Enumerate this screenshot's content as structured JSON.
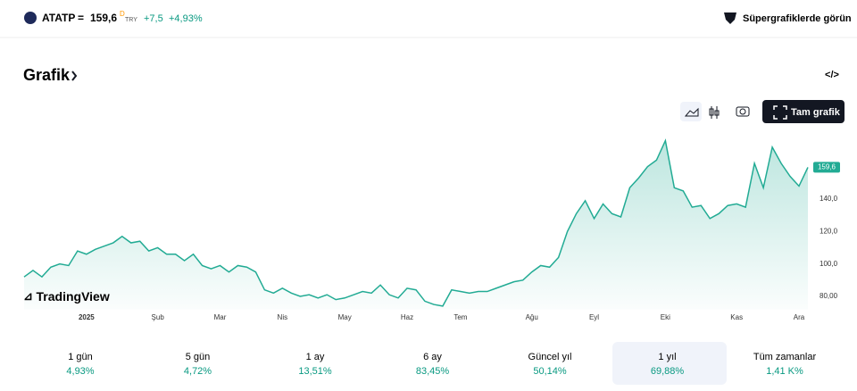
{
  "header": {
    "symbol": "ATATP",
    "equals": "=",
    "price": "159,6",
    "flag": "D",
    "currency": "TRY",
    "change": "+7,5",
    "change_pct": "+4,93%",
    "super_link": "Süpergrafiklerde görün"
  },
  "section": {
    "title": "Grafik",
    "full_chart": "Tam grafik",
    "brand": "TradingView"
  },
  "chart_data": {
    "type": "line",
    "color": "#22ab94",
    "categories": [
      null,
      null,
      null,
      null,
      null,
      null,
      null,
      "2025",
      null,
      null,
      null,
      null,
      null,
      null,
      null,
      "Şub",
      null,
      null,
      null,
      null,
      null,
      null,
      "Mar",
      null,
      null,
      null,
      null,
      null,
      null,
      "Nis",
      null,
      null,
      null,
      null,
      null,
      null,
      "May",
      null,
      null,
      null,
      null,
      null,
      null,
      "Haz",
      null,
      null,
      null,
      null,
      null,
      "Tem",
      null,
      null,
      null,
      null,
      null,
      null,
      null,
      "Ağu",
      null,
      null,
      null,
      null,
      null,
      null,
      "Eyl",
      null,
      null,
      null,
      null,
      null,
      null,
      null,
      "Eki",
      null,
      null,
      null,
      null,
      null,
      null,
      null,
      "Kas",
      null,
      null,
      null,
      null,
      null,
      null,
      "Ara",
      null
    ],
    "values": [
      92,
      96,
      92,
      98,
      100,
      99,
      108,
      106,
      109,
      111,
      113,
      117,
      113,
      114,
      108,
      110,
      106,
      106,
      102,
      106,
      99,
      97,
      99,
      95,
      99,
      98,
      95,
      84,
      82,
      85,
      82,
      80,
      81,
      79,
      81,
      78,
      79,
      81,
      83,
      82,
      87,
      81,
      79,
      85,
      84,
      77,
      75,
      74,
      84,
      83,
      82,
      83,
      83,
      85,
      87,
      89,
      90,
      95,
      99,
      98,
      104,
      120,
      131,
      139,
      128,
      137,
      131,
      129,
      147,
      153,
      160,
      164,
      176,
      147,
      145,
      135,
      136,
      128,
      131,
      136,
      137,
      135,
      162,
      147,
      172,
      162,
      154,
      148,
      159.6
    ],
    "last_label": "159,6",
    "ylim": [
      72,
      182
    ],
    "yticks": [
      {
        "value": 80,
        "label": "80,00"
      },
      {
        "value": 100,
        "label": "100,0"
      },
      {
        "value": 120,
        "label": "120,0"
      },
      {
        "value": 140,
        "label": "140,0"
      }
    ]
  },
  "periods": [
    {
      "label": "1 gün",
      "change": "4,93%"
    },
    {
      "label": "5 gün",
      "change": "4,72%"
    },
    {
      "label": "1 ay",
      "change": "13,51%"
    },
    {
      "label": "6 ay",
      "change": "83,45%"
    },
    {
      "label": "Güncel yıl",
      "change": "50,14%"
    },
    {
      "label": "1 yıl",
      "change": "69,88%"
    },
    {
      "label": "Tüm zamanlar",
      "change": "1,41 K%"
    }
  ]
}
